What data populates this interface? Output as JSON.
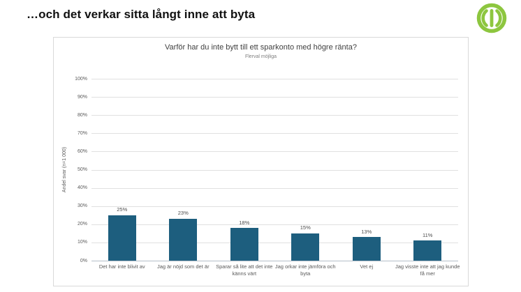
{
  "slide": {
    "title": "…och det verkar sitta långt inne att byta"
  },
  "logo": {
    "icon": "brand-ring-monogram-icon",
    "color": "#8dc63f"
  },
  "chart": {
    "title": "Varför har du inte bytt till ett sparkonto med högre ränta?",
    "subtitle": "Flerval möjliga",
    "ylabel": "Andel svar (n=1 000)"
  },
  "chart_data": {
    "type": "bar",
    "title": "Varför har du inte bytt till ett sparkonto med högre ränta?",
    "subtitle": "Flerval möjliga",
    "categories": [
      "Det har inte blivit av",
      "Jag är nöjd som det är",
      "Sparar så lite att det inte känns värt",
      "Jag orkar inte jämföra och byta",
      "Vet ej",
      "Jag visste inte att jag kunde få mer"
    ],
    "values": [
      25,
      23,
      18,
      15,
      13,
      11
    ],
    "value_labels": [
      "25%",
      "23%",
      "18%",
      "15%",
      "13%",
      "11%"
    ],
    "xlabel": "",
    "ylabel": "Andel svar (n=1 000)",
    "ylim": [
      0,
      100
    ],
    "ytick_step": 10,
    "ytick_suffix": "%",
    "grid": true,
    "legend": false,
    "bar_color": "#1d5e7e"
  }
}
